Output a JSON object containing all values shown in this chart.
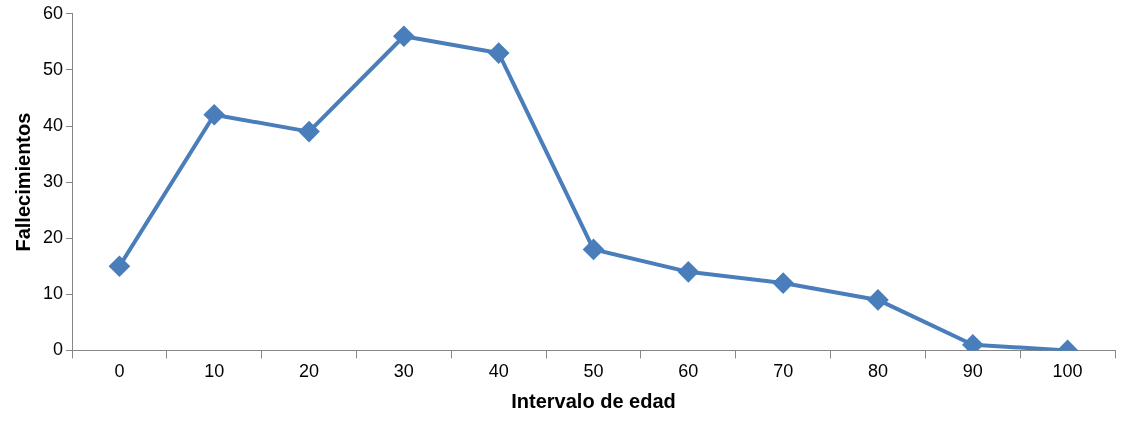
{
  "chart_data": {
    "type": "line",
    "xlabel": "Intervalo de edad",
    "ylabel": "Fallecimientos",
    "categories": [
      "0",
      "10",
      "20",
      "30",
      "40",
      "50",
      "60",
      "70",
      "80",
      "90",
      "100"
    ],
    "series": [
      {
        "color": "#4a7ebb",
        "values": [
          15,
          42,
          39,
          56,
          53,
          18,
          14,
          12,
          9,
          1,
          0
        ]
      }
    ],
    "ylim": [
      0,
      60
    ],
    "yticks": [
      0,
      10,
      20,
      30,
      40,
      50,
      60
    ],
    "grid": false,
    "legend": false,
    "marker": "diamond",
    "line_style": "solid"
  }
}
